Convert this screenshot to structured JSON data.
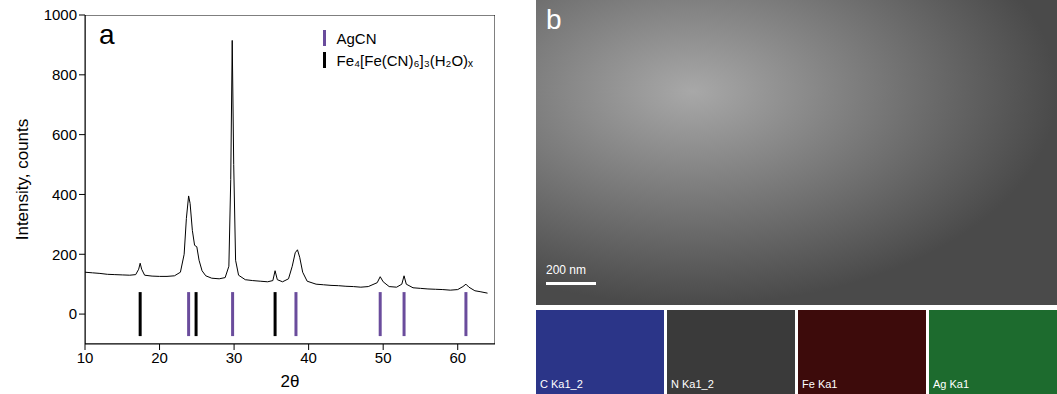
{
  "chart_data": {
    "type": "line",
    "panel_label": "a",
    "x_label": "2θ",
    "y_label": "Intensity, counts",
    "xlim": [
      10,
      65
    ],
    "xticks": [
      10,
      20,
      30,
      40,
      50,
      60
    ],
    "ylim": [
      -100,
      1000
    ],
    "yticks": [
      0,
      200,
      400,
      600,
      800,
      1000
    ],
    "grid": false,
    "legend": "upper right",
    "series": [
      {
        "type": "line",
        "color": "#000000",
        "x": [
          10,
          11,
          12,
          13,
          14,
          15,
          16,
          16.8,
          17.2,
          17.4,
          17.6,
          18,
          19,
          20,
          21,
          22,
          22.8,
          23.3,
          23.6,
          23.9,
          24.1,
          24.4,
          24.7,
          25.0,
          25.3,
          25.7,
          26.2,
          27,
          28,
          28.8,
          29.3,
          29.55,
          29.75,
          29.95,
          30.2,
          30.6,
          31.5,
          32.5,
          33.5,
          34.5,
          35.2,
          35.5,
          35.8,
          36.5,
          37.3,
          37.8,
          38.2,
          38.5,
          38.8,
          39.2,
          39.8,
          41,
          42,
          43,
          44,
          45,
          46,
          47,
          48,
          49.2,
          49.6,
          50.0,
          50.8,
          51.8,
          52.5,
          52.8,
          53.1,
          54,
          55,
          56,
          57,
          58,
          59,
          60,
          60.7,
          61.1,
          61.5,
          62.3,
          63,
          64
        ],
        "values": [
          140,
          138,
          136,
          133,
          132,
          131,
          130,
          132,
          150,
          170,
          150,
          130,
          127,
          126,
          126,
          128,
          140,
          200,
          320,
          395,
          370,
          280,
          230,
          225,
          180,
          145,
          128,
          120,
          118,
          122,
          160,
          450,
          915,
          500,
          180,
          130,
          115,
          112,
          110,
          108,
          112,
          145,
          115,
          108,
          118,
          160,
          205,
          215,
          190,
          140,
          110,
          100,
          98,
          96,
          95,
          93,
          92,
          90,
          92,
          105,
          125,
          108,
          92,
          90,
          100,
          128,
          100,
          88,
          86,
          84,
          83,
          82,
          80,
          82,
          92,
          100,
          90,
          78,
          75,
          70
        ]
      },
      {
        "name": "AgCN",
        "type": "scatter",
        "marker": "|",
        "color": "#6a4c9c",
        "x": [
          23.9,
          29.8,
          38.3,
          49.6,
          52.8,
          61.1
        ],
        "values": [
          0,
          0,
          0,
          0,
          0,
          0
        ]
      },
      {
        "name": "Fe₄[Fe(CN)₆]₃(H₂O)ₓ",
        "type": "scatter",
        "marker": "|",
        "color": "#000000",
        "x": [
          17.4,
          24.9,
          35.5
        ],
        "values": [
          0,
          0,
          0
        ]
      }
    ]
  },
  "image": {
    "panel_label": "b",
    "scale_bar": "200 nm",
    "maps": [
      {
        "label": "C Ka1_2",
        "color": "#2b3588"
      },
      {
        "label": "N Ka1_2",
        "color": "#3a3a3a"
      },
      {
        "label": "Fe Ka1",
        "color": "#3d0b0b"
      },
      {
        "label": "Ag Ka1",
        "color": "#1d6b2e"
      }
    ]
  }
}
